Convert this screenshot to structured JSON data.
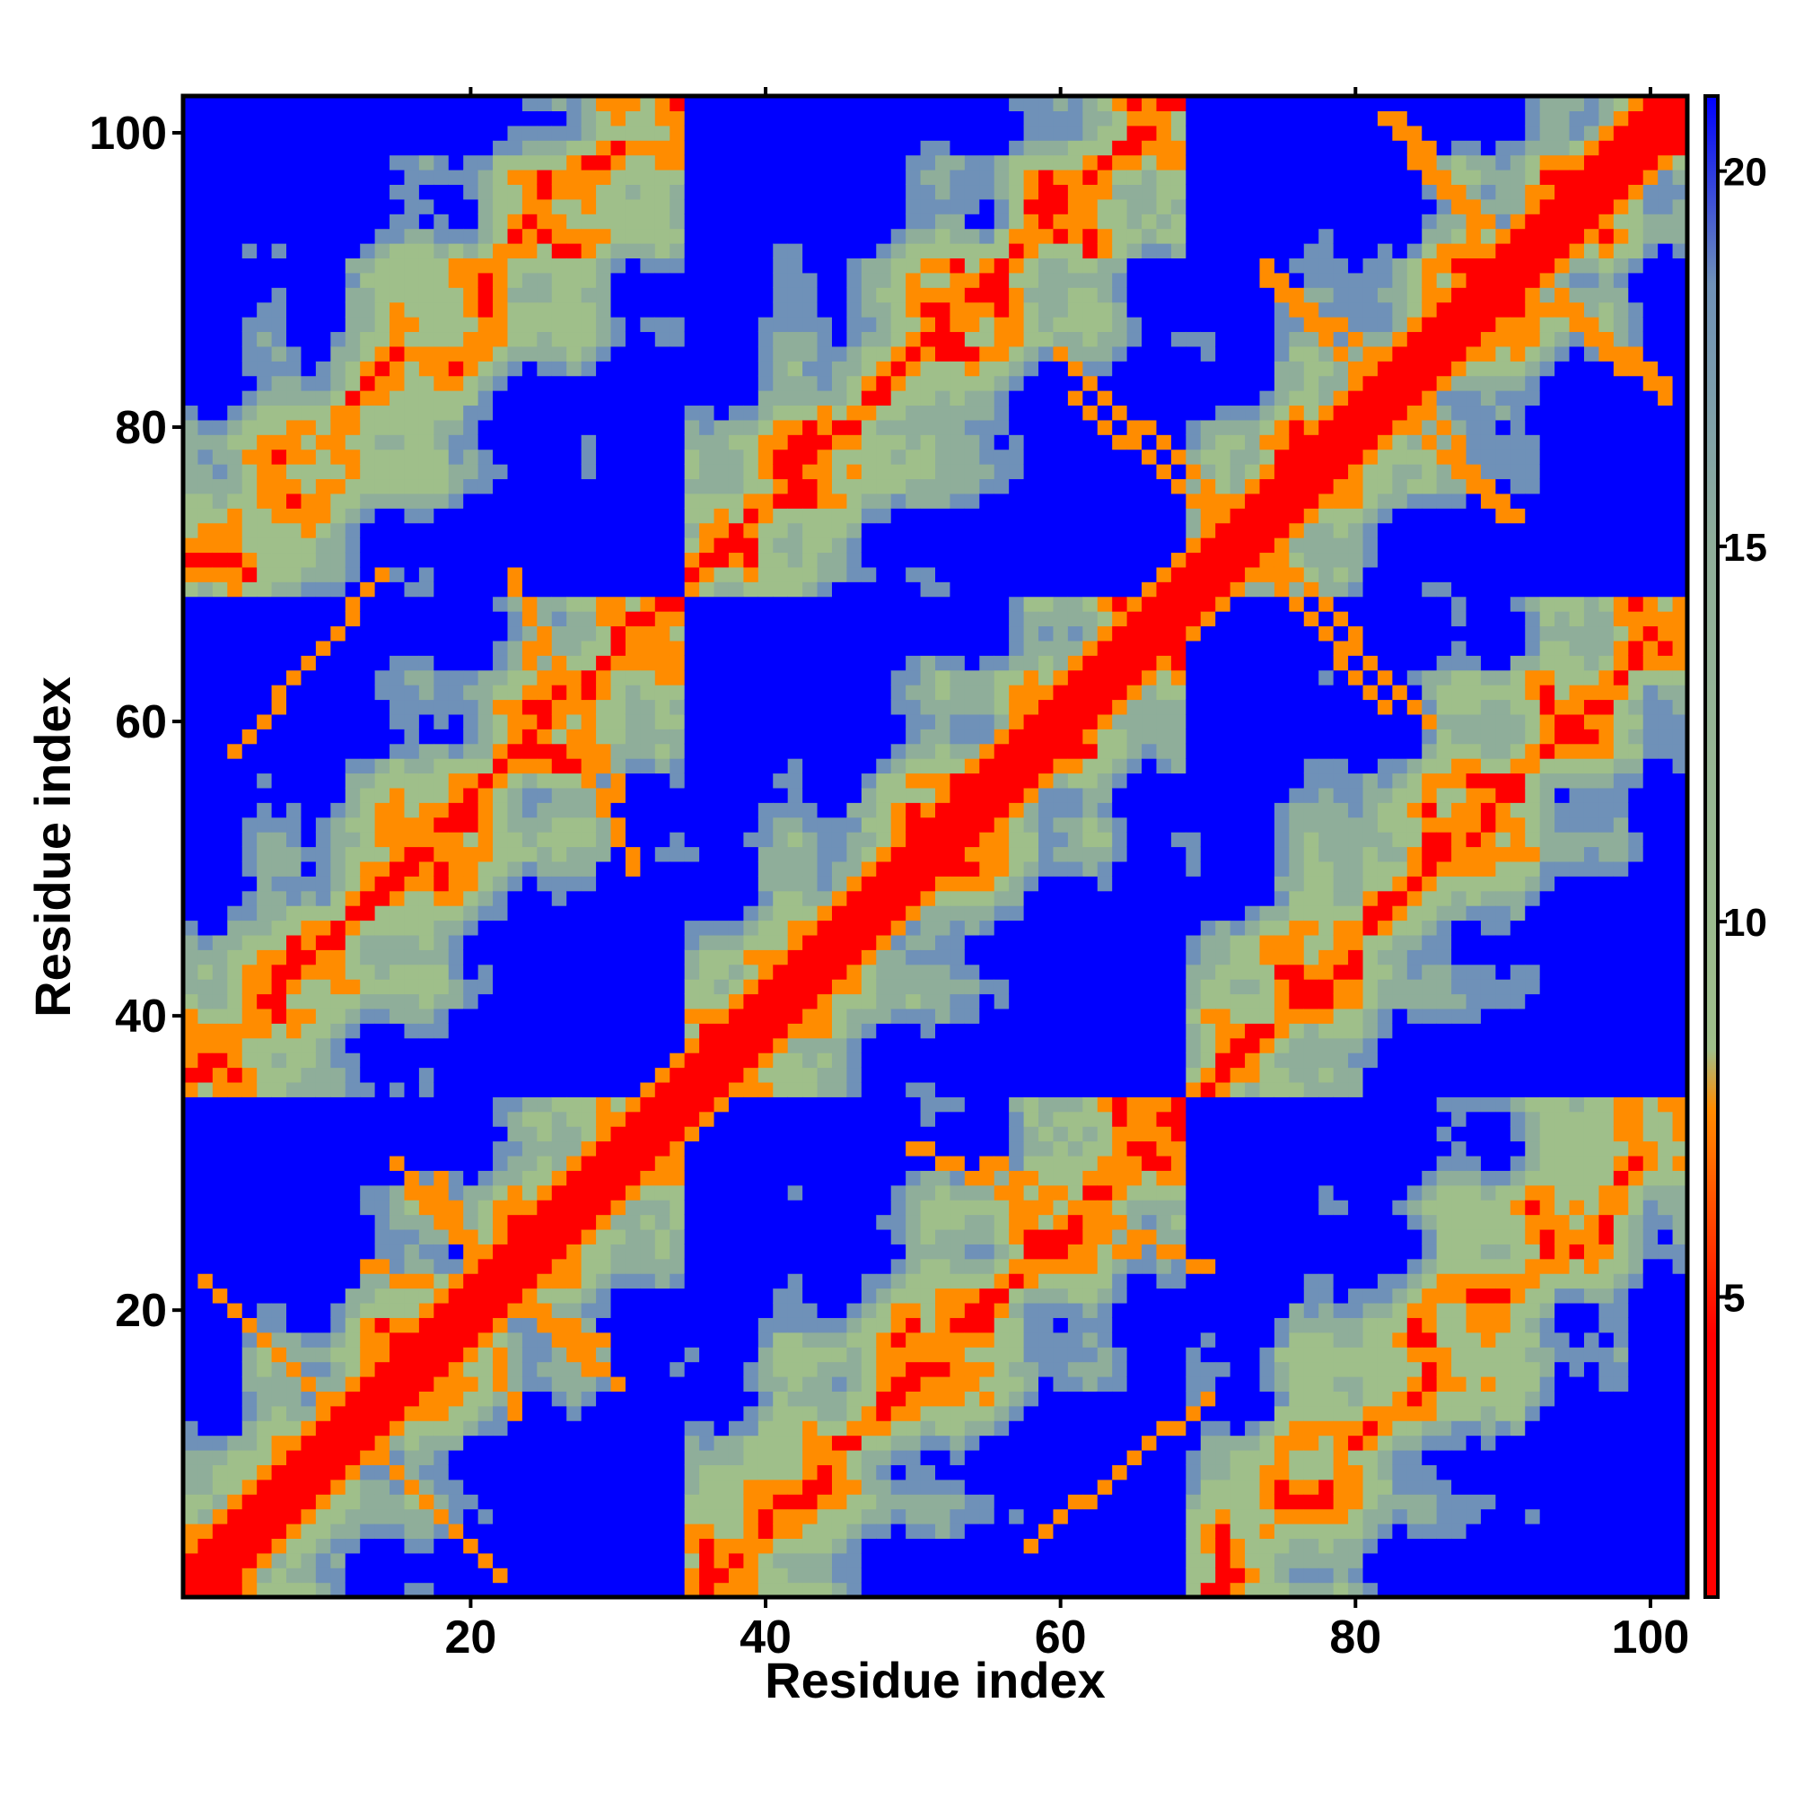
{
  "chart_data": {
    "type": "heatmap",
    "title": "",
    "xlabel": "Residue index",
    "ylabel": "Residue index",
    "n_residues": 102,
    "xlim": [
      1,
      102
    ],
    "ylim": [
      1,
      102
    ],
    "x_ticks": [
      20,
      40,
      60,
      80,
      100
    ],
    "y_ticks": [
      20,
      40,
      60,
      80,
      100
    ],
    "colorbar": {
      "range": [
        1,
        21
      ],
      "ticks": [
        5,
        10,
        15,
        20
      ],
      "colors": [
        "#ff0000",
        "#ff8c00",
        "#9fbf8a",
        "#6f91b8",
        "#0000ff"
      ]
    },
    "secondary_structure_contacts": [
      {
        "residues_a": [
          2,
          16
        ],
        "residues_b": [
          22,
          8
        ],
        "kind": "antiparallel"
      },
      {
        "residues_a": [
          14,
          33
        ],
        "residues_b": [
          18,
          30
        ],
        "kind": "antiparallel"
      },
      {
        "residues_a": [
          13,
          29
        ],
        "residues_b": [
          23,
          18
        ],
        "kind": "antiparallel"
      },
      {
        "residues_a": [
          15,
          28
        ],
        "residues_b": [
          30,
          16
        ],
        "kind": "antiparallel"
      },
      {
        "residues_a": [
          23,
          30
        ],
        "residues_b": [
          70,
          55
        ],
        "kind": "antiparallel"
      },
      {
        "residues_a": [
          50,
          65
        ],
        "residues_b": [
          31,
          24
        ],
        "kind": "antiparallel"
      },
      {
        "residues_a": [
          58,
          70
        ],
        "residues_b": [
          4,
          14
        ],
        "kind": "parallel"
      },
      {
        "residues_a": [
          60,
          72
        ],
        "residues_b": [
          85,
          74
        ],
        "kind": "antiparallel"
      },
      {
        "residues_a": [
          70,
          82
        ],
        "residues_b": [
          75,
          61
        ],
        "kind": "antiparallel"
      },
      {
        "residues_a": [
          74,
          84
        ],
        "residues_b": [
          91,
          82
        ],
        "kind": "antiparallel"
      },
      {
        "residues_a": [
          82,
          90
        ],
        "residues_b": [
          101,
          91
        ],
        "kind": "antiparallel"
      },
      {
        "residues_a": [
          82,
          90
        ],
        "residues_b": [
          82,
          74
        ],
        "kind": "antiparallel"
      },
      {
        "residues_a": [
          90,
          101
        ],
        "residues_b": [
          92,
          83
        ],
        "kind": "antiparallel"
      },
      {
        "residues_a": [
          40,
          48
        ],
        "residues_b": [
          44,
          47
        ],
        "kind": "helix"
      }
    ]
  }
}
